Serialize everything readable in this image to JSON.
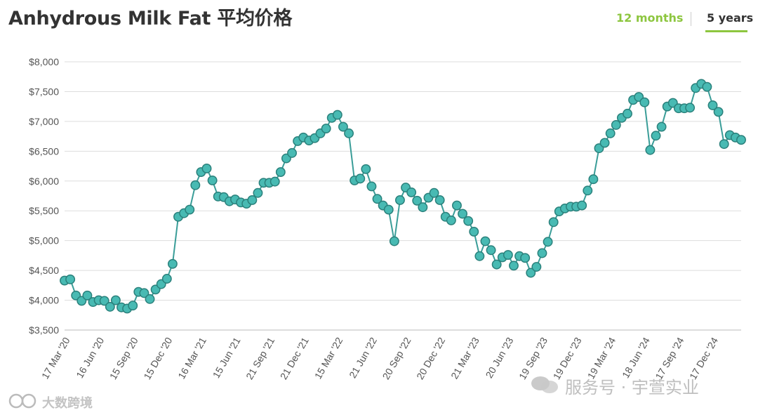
{
  "header": {
    "title": "Anhydrous Milk Fat 平均价格",
    "range_12": "12 months",
    "range_5": "5 years"
  },
  "colors": {
    "accent": "#8dc63f",
    "line": "#3a9d98",
    "marker_fill": "#48bab3",
    "marker_stroke": "#2a807b",
    "grid": "#dddddd",
    "text": "#333333"
  },
  "watermarks": {
    "left": "大数跨境",
    "right": "服务号 · 宇萱实业"
  },
  "chart_data": {
    "type": "line",
    "title": "Anhydrous Milk Fat 平均价格",
    "xlabel": "",
    "ylabel": "",
    "ylim": [
      3500,
      8000
    ],
    "yticks": [
      3500,
      4000,
      4500,
      5000,
      5500,
      6000,
      6500,
      7000,
      7500,
      8000
    ],
    "ytick_labels": [
      "$3,500",
      "$4,000",
      "$4,500",
      "$5,000",
      "$5,500",
      "$6,000",
      "$6,500",
      "$7,000",
      "$7,500",
      "$8,000"
    ],
    "xtick_labels": [
      "17 Mar '20",
      "16 Jun '20",
      "15 Sep '20",
      "15 Dec '20",
      "16 Mar '21",
      "15 Jun '21",
      "21 Sep '21",
      "21 Dec '21",
      "15 Mar '22",
      "21 Jun '22",
      "20 Sep '22",
      "20 Dec '22",
      "21 Mar '23",
      "20 Jun '23",
      "19 Sep '23",
      "19 Dec '23",
      "19 Mar '24",
      "18 Jun '24",
      "17 Sep '24",
      "17 Dec '24"
    ],
    "xtick_index": [
      0,
      6,
      12,
      18,
      24,
      30,
      36,
      42,
      48,
      54,
      60,
      66,
      72,
      78,
      84,
      90,
      96,
      102,
      108,
      114
    ],
    "grid": true,
    "legend": "none",
    "series": [
      {
        "values": [
          4330,
          4350,
          4080,
          3990,
          4080,
          3970,
          4000,
          3990,
          3890,
          4000,
          3880,
          3860,
          3910,
          4140,
          4120,
          4020,
          4180,
          4270,
          4360,
          4610,
          5400,
          5460,
          5520,
          5930,
          6150,
          6210,
          6010,
          5740,
          5730,
          5660,
          5690,
          5640,
          5620,
          5680,
          5800,
          5970,
          5970,
          5990,
          6150,
          6380,
          6470,
          6670,
          6730,
          6680,
          6720,
          6800,
          6880,
          7060,
          7110,
          6910,
          6800,
          6010,
          6040,
          6200,
          5910,
          5700,
          5590,
          5520,
          4990,
          5680,
          5890,
          5810,
          5670,
          5560,
          5720,
          5800,
          5680,
          5400,
          5340,
          5590,
          5450,
          5330,
          5150,
          4740,
          4990,
          4840,
          4600,
          4720,
          4760,
          4580,
          4740,
          4710,
          4460,
          4560,
          4790,
          4980,
          5310,
          5490,
          5540,
          5570,
          5570,
          5590,
          5840,
          6030,
          6550,
          6640,
          6800,
          6940,
          7060,
          7130,
          7360,
          7410,
          7320,
          6520,
          6760,
          6910,
          7250,
          7310,
          7220,
          7220,
          7230,
          7560,
          7630,
          7580,
          7270,
          7160,
          6620,
          6770,
          6730,
          6690
        ]
      }
    ]
  }
}
